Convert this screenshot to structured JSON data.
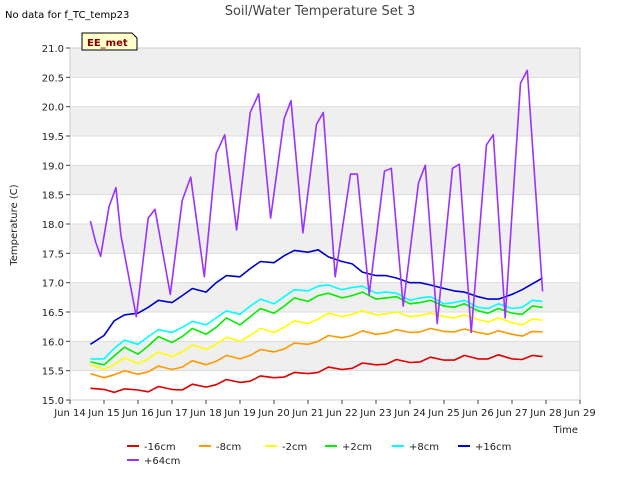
{
  "notice": "No data for f_TC_temp23",
  "badge": "EE_met",
  "chart_data": {
    "type": "line",
    "title": "Soil/Water Temperature Set 3",
    "xlabel": "Time",
    "ylabel": "Temperature (C)",
    "xlim": [
      14,
      29
    ],
    "ylim": [
      15.0,
      21.0
    ],
    "x_ticks": [
      14,
      15,
      16,
      17,
      18,
      19,
      20,
      21,
      22,
      23,
      24,
      25,
      26,
      27,
      28,
      29
    ],
    "x_tick_labels": [
      "Jun 14",
      "Jun 15",
      "Jun 16",
      "Jun 17",
      "Jun 18",
      "Jun 19",
      "Jun 20",
      "Jun 21",
      "Jun 22",
      "Jun 23",
      "Jun 24",
      "Jun 25",
      "Jun 26",
      "Jun 27",
      "Jun 28",
      "Jun 29"
    ],
    "y_ticks": [
      15.0,
      15.5,
      16.0,
      16.5,
      17.0,
      17.5,
      18.0,
      18.5,
      19.0,
      19.5,
      20.0,
      20.5,
      21.0
    ],
    "y_tick_labels": [
      "15.0",
      "15.5",
      "16.0",
      "16.5",
      "17.0",
      "17.5",
      "18.0",
      "18.5",
      "19.0",
      "19.5",
      "20.0",
      "20.5",
      "21.0"
    ],
    "grid": "horizontal alternating bands",
    "legend_position": "bottom",
    "series": [
      {
        "name": "-16cm",
        "color": "#dd0000",
        "x": [
          14.6,
          15.0,
          15.3,
          15.6,
          16.0,
          16.3,
          16.6,
          17.0,
          17.3,
          17.6,
          18.0,
          18.3,
          18.6,
          19.0,
          19.3,
          19.6,
          20.0,
          20.3,
          20.6,
          21.0,
          21.3,
          21.6,
          22.0,
          22.3,
          22.6,
          23.0,
          23.3,
          23.6,
          24.0,
          24.3,
          24.6,
          25.0,
          25.3,
          25.6,
          26.0,
          26.3,
          26.6,
          27.0,
          27.3,
          27.6,
          27.9
        ],
        "y": [
          15.2,
          15.18,
          15.13,
          15.19,
          15.17,
          15.14,
          15.23,
          15.18,
          15.17,
          15.27,
          15.22,
          15.26,
          15.35,
          15.3,
          15.32,
          15.41,
          15.38,
          15.39,
          15.47,
          15.45,
          15.47,
          15.56,
          15.52,
          15.54,
          15.63,
          15.6,
          15.61,
          15.69,
          15.64,
          15.65,
          15.73,
          15.68,
          15.68,
          15.76,
          15.7,
          15.7,
          15.77,
          15.7,
          15.69,
          15.76,
          15.74
        ]
      },
      {
        "name": "-8cm",
        "color": "#ff9900",
        "x": [
          14.6,
          15.0,
          15.3,
          15.6,
          16.0,
          16.3,
          16.6,
          17.0,
          17.3,
          17.6,
          18.0,
          18.3,
          18.6,
          19.0,
          19.3,
          19.6,
          20.0,
          20.3,
          20.6,
          21.0,
          21.3,
          21.6,
          22.0,
          22.3,
          22.6,
          23.0,
          23.3,
          23.6,
          24.0,
          24.3,
          24.6,
          25.0,
          25.3,
          25.6,
          26.0,
          26.3,
          26.6,
          27.0,
          27.3,
          27.6,
          27.9
        ],
        "y": [
          15.45,
          15.38,
          15.43,
          15.5,
          15.44,
          15.48,
          15.58,
          15.52,
          15.56,
          15.67,
          15.6,
          15.66,
          15.76,
          15.7,
          15.76,
          15.86,
          15.82,
          15.87,
          15.97,
          15.95,
          16.0,
          16.1,
          16.06,
          16.1,
          16.18,
          16.12,
          16.14,
          16.2,
          16.15,
          16.16,
          16.22,
          16.17,
          16.16,
          16.21,
          16.15,
          16.12,
          16.18,
          16.12,
          16.09,
          16.17,
          16.16
        ]
      },
      {
        "name": "-2cm",
        "color": "#ffff00",
        "x": [
          14.6,
          15.0,
          15.3,
          15.6,
          16.0,
          16.3,
          16.6,
          17.0,
          17.3,
          17.6,
          18.0,
          18.3,
          18.6,
          19.0,
          19.3,
          19.6,
          20.0,
          20.3,
          20.6,
          21.0,
          21.3,
          21.6,
          22.0,
          22.3,
          22.6,
          23.0,
          23.3,
          23.6,
          24.0,
          24.3,
          24.6,
          25.0,
          25.3,
          25.6,
          26.0,
          26.3,
          26.6,
          27.0,
          27.3,
          27.6,
          27.9
        ],
        "y": [
          15.6,
          15.52,
          15.6,
          15.72,
          15.62,
          15.7,
          15.82,
          15.74,
          15.82,
          15.94,
          15.86,
          15.95,
          16.07,
          16.0,
          16.1,
          16.22,
          16.15,
          16.24,
          16.35,
          16.3,
          16.38,
          16.48,
          16.42,
          16.46,
          16.52,
          16.45,
          16.47,
          16.5,
          16.42,
          16.44,
          16.48,
          16.42,
          16.4,
          16.45,
          16.37,
          16.33,
          16.4,
          16.32,
          16.28,
          16.38,
          16.36
        ]
      },
      {
        "name": "+2cm",
        "color": "#00ee00",
        "x": [
          14.6,
          15.0,
          15.3,
          15.6,
          16.0,
          16.3,
          16.6,
          17.0,
          17.3,
          17.6,
          18.0,
          18.3,
          18.6,
          19.0,
          19.3,
          19.6,
          20.0,
          20.3,
          20.6,
          21.0,
          21.3,
          21.6,
          22.0,
          22.3,
          22.6,
          23.0,
          23.3,
          23.6,
          24.0,
          24.3,
          24.6,
          25.0,
          25.3,
          25.6,
          26.0,
          26.3,
          26.6,
          27.0,
          27.3,
          27.6,
          27.9
        ],
        "y": [
          15.65,
          15.6,
          15.75,
          15.9,
          15.78,
          15.92,
          16.08,
          15.98,
          16.08,
          16.22,
          16.12,
          16.24,
          16.4,
          16.28,
          16.42,
          16.56,
          16.48,
          16.6,
          16.74,
          16.68,
          16.78,
          16.82,
          16.74,
          16.78,
          16.84,
          16.72,
          16.74,
          16.76,
          16.64,
          16.66,
          16.7,
          16.6,
          16.58,
          16.64,
          16.52,
          16.48,
          16.56,
          16.48,
          16.46,
          16.6,
          16.58
        ]
      },
      {
        "name": "+8cm",
        "color": "#00ffff",
        "x": [
          14.6,
          15.0,
          15.3,
          15.6,
          16.0,
          16.3,
          16.6,
          17.0,
          17.3,
          17.6,
          18.0,
          18.3,
          18.6,
          19.0,
          19.3,
          19.6,
          20.0,
          20.3,
          20.6,
          21.0,
          21.3,
          21.6,
          22.0,
          22.3,
          22.6,
          23.0,
          23.3,
          23.6,
          24.0,
          24.3,
          24.6,
          25.0,
          25.3,
          25.6,
          26.0,
          26.3,
          26.6,
          27.0,
          27.3,
          27.6,
          27.9
        ],
        "y": [
          15.7,
          15.7,
          15.88,
          16.02,
          15.95,
          16.08,
          16.2,
          16.15,
          16.24,
          16.34,
          16.28,
          16.4,
          16.52,
          16.46,
          16.6,
          16.72,
          16.64,
          16.76,
          16.88,
          16.86,
          16.94,
          16.96,
          16.88,
          16.92,
          16.94,
          16.82,
          16.84,
          16.82,
          16.7,
          16.74,
          16.76,
          16.64,
          16.66,
          16.7,
          16.58,
          16.56,
          16.64,
          16.56,
          16.58,
          16.7,
          16.68
        ]
      },
      {
        "name": "+16cm",
        "color": "#0000cc",
        "x": [
          14.6,
          15.0,
          15.3,
          15.6,
          16.0,
          16.3,
          16.6,
          17.0,
          17.3,
          17.6,
          18.0,
          18.3,
          18.6,
          19.0,
          19.3,
          19.6,
          20.0,
          20.3,
          20.6,
          21.0,
          21.3,
          21.6,
          22.0,
          22.3,
          22.6,
          23.0,
          23.3,
          23.6,
          24.0,
          24.3,
          24.6,
          25.0,
          25.3,
          25.6,
          26.0,
          26.3,
          26.6,
          27.0,
          27.3,
          27.6,
          27.9
        ],
        "y": [
          15.95,
          16.1,
          16.35,
          16.45,
          16.48,
          16.58,
          16.7,
          16.66,
          16.78,
          16.9,
          16.84,
          17.0,
          17.12,
          17.1,
          17.24,
          17.36,
          17.34,
          17.46,
          17.55,
          17.52,
          17.56,
          17.44,
          17.36,
          17.32,
          17.18,
          17.12,
          17.12,
          17.08,
          17.0,
          17.0,
          16.96,
          16.9,
          16.86,
          16.84,
          16.76,
          16.72,
          16.72,
          16.8,
          16.88,
          16.98,
          17.08
        ]
      },
      {
        "name": "+64cm",
        "color": "#9933ff",
        "x": [
          14.6,
          14.75,
          14.9,
          15.15,
          15.35,
          15.5,
          15.95,
          16.3,
          16.5,
          16.95,
          17.3,
          17.55,
          17.95,
          18.3,
          18.55,
          18.9,
          19.3,
          19.55,
          19.9,
          20.3,
          20.5,
          20.85,
          21.25,
          21.45,
          21.8,
          22.25,
          22.45,
          22.8,
          23.25,
          23.45,
          23.8,
          24.25,
          24.45,
          24.8,
          25.25,
          25.45,
          25.8,
          26.25,
          26.45,
          26.8,
          27.25,
          27.45,
          27.9
        ],
        "y": [
          18.05,
          17.7,
          17.45,
          18.3,
          18.62,
          17.8,
          16.42,
          18.1,
          18.25,
          16.8,
          18.4,
          18.8,
          17.1,
          19.2,
          19.52,
          17.9,
          19.9,
          20.22,
          18.1,
          19.8,
          20.1,
          17.85,
          19.7,
          19.9,
          17.1,
          18.85,
          18.85,
          16.8,
          18.9,
          18.95,
          16.6,
          18.7,
          19.0,
          16.3,
          18.95,
          19.02,
          16.15,
          19.35,
          19.52,
          16.4,
          20.4,
          20.62,
          16.85
        ]
      }
    ]
  }
}
